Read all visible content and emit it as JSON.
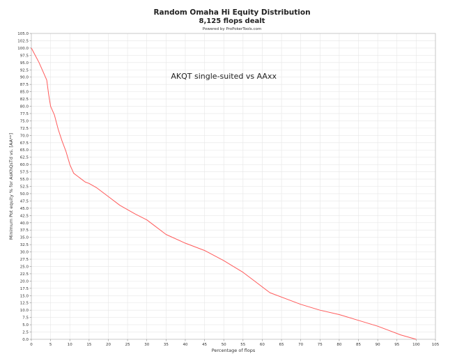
{
  "chart_data": {
    "type": "line",
    "title": "Random Omaha Hi Equity Distribution",
    "subtitle": "8,125 flops dealt",
    "credit": "Powered by ProPokerTools.com",
    "annotation": "AKQT single-suited vs AAxx",
    "xlabel": "Percentage of flops",
    "ylabel": "Minimum Pot equity % for AsKhQsTd vs. [AA**]",
    "xlim": [
      0,
      105
    ],
    "ylim": [
      0,
      105
    ],
    "xticks": [
      0,
      5,
      10,
      15,
      20,
      25,
      30,
      35,
      40,
      45,
      50,
      55,
      60,
      65,
      70,
      75,
      80,
      85,
      90,
      95,
      100,
      105
    ],
    "yticks": [
      0,
      2.5,
      5,
      7.5,
      10,
      12.5,
      15,
      17.5,
      20,
      22.5,
      25,
      27.5,
      30,
      32.5,
      35,
      37.5,
      40,
      42.5,
      45,
      47.5,
      50,
      52.5,
      55,
      57.5,
      60,
      62.5,
      65,
      67.5,
      70,
      72.5,
      75,
      77.5,
      80,
      82.5,
      85,
      87.5,
      90,
      92.5,
      95,
      97.5,
      100,
      102.5,
      105
    ],
    "grid": true,
    "line_color": "#ff5a5a",
    "series": [
      {
        "name": "",
        "x": [
          0,
          1,
          2,
          3,
          4,
          4.5,
          5,
          5.5,
          6,
          7,
          8,
          9,
          10,
          11,
          12,
          13,
          14,
          15,
          17,
          20,
          23,
          27,
          30,
          32,
          35,
          40,
          45,
          50,
          55,
          58,
          62,
          67,
          70,
          75,
          80,
          85,
          90,
          93,
          96,
          100
        ],
        "y": [
          100,
          97.5,
          95,
          92,
          89,
          84,
          80,
          78.5,
          77,
          72,
          68,
          64.5,
          60,
          57,
          56,
          55,
          54,
          53.5,
          52,
          49,
          46,
          43,
          41,
          39,
          36,
          33,
          30.5,
          27,
          23,
          20,
          16,
          13.5,
          12,
          10,
          8.5,
          6.5,
          4.5,
          3,
          1.5,
          0
        ]
      }
    ]
  }
}
